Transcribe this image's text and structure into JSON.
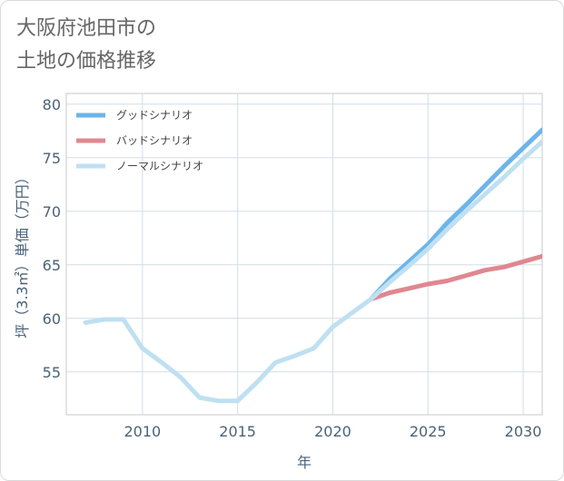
{
  "title_lines": [
    "大阪府池田市の",
    "土地の価格推移"
  ],
  "chart_data": {
    "type": "line",
    "title": "大阪府池田市の土地の価格推移",
    "xlabel": "年",
    "ylabel": "坪（3.3㎡）単価（万円）",
    "xlim": [
      2006,
      2031
    ],
    "ylim": [
      51,
      81
    ],
    "xticks": [
      2010,
      2015,
      2020,
      2025,
      2030
    ],
    "yticks": [
      55,
      60,
      65,
      70,
      75,
      80
    ],
    "grid": true,
    "legend_position": "top-left",
    "series": [
      {
        "name": "グッドシナリオ",
        "color": "#6cb5ea",
        "x": [
          2022,
          2023,
          2024,
          2025,
          2026,
          2027,
          2028,
          2029,
          2030,
          2031
        ],
        "y": [
          61.8,
          63.7,
          65.3,
          66.9,
          68.9,
          70.6,
          72.4,
          74.2,
          75.9,
          77.6
        ]
      },
      {
        "name": "バッドシナリオ",
        "color": "#e0878f",
        "x": [
          2022,
          2023,
          2024,
          2025,
          2026,
          2027,
          2028,
          2029,
          2030,
          2031
        ],
        "y": [
          61.8,
          62.4,
          62.8,
          63.2,
          63.5,
          64.0,
          64.5,
          64.8,
          65.3,
          65.8
        ]
      },
      {
        "name": "ノーマルシナリオ",
        "color": "#bfe0f1",
        "x": [
          2007,
          2008,
          2009,
          2010,
          2011,
          2012,
          2013,
          2014,
          2015,
          2016,
          2017,
          2018,
          2019,
          2020,
          2021,
          2022,
          2023,
          2024,
          2025,
          2026,
          2027,
          2028,
          2029,
          2030,
          2031
        ],
        "y": [
          59.6,
          59.9,
          59.9,
          57.2,
          55.9,
          54.5,
          52.6,
          52.3,
          52.3,
          54.0,
          55.9,
          56.5,
          57.2,
          59.2,
          60.5,
          61.8,
          63.4,
          64.9,
          66.5,
          68.3,
          70.0,
          71.6,
          73.2,
          74.9,
          76.5
        ]
      }
    ]
  }
}
